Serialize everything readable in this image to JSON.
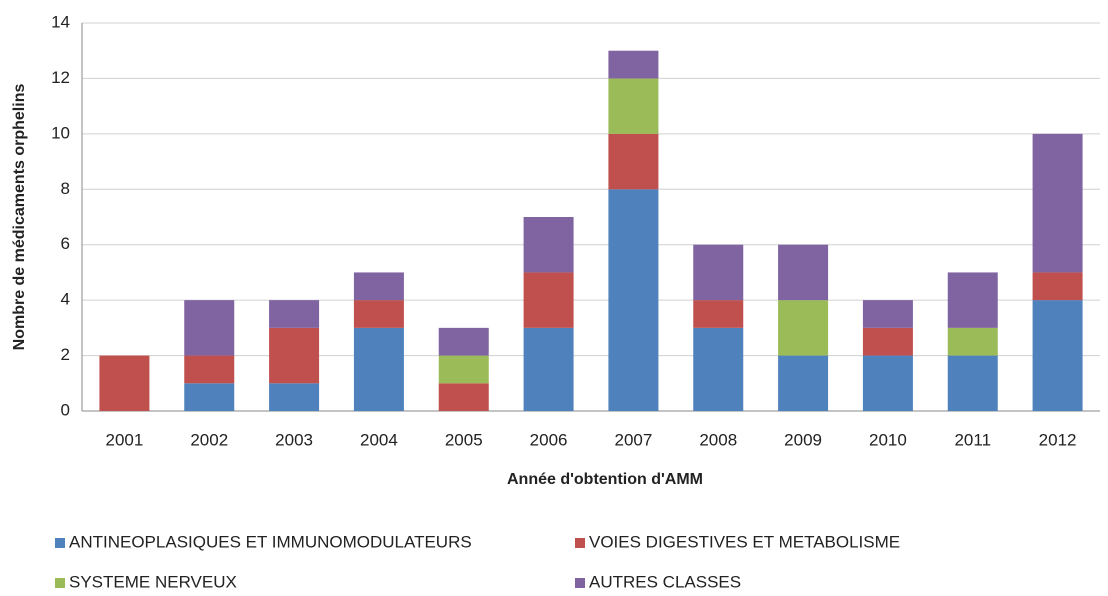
{
  "chart_data": {
    "type": "stacked_bar",
    "x_label": "Année d'obtention d'AMM",
    "y_label": "Nombre de médicaments orphelins",
    "categories": [
      "2001",
      "2002",
      "2003",
      "2004",
      "2005",
      "2006",
      "2007",
      "2008",
      "2009",
      "2010",
      "2011",
      "2012"
    ],
    "series": [
      {
        "name": "ANTINEOPLASIQUES ET IMMUNOMODULATEURS",
        "color": "#4f81bd",
        "values": [
          0,
          1,
          1,
          3,
          0,
          3,
          8,
          3,
          2,
          2,
          2,
          4
        ]
      },
      {
        "name": "VOIES DIGESTIVES ET METABOLISME",
        "color": "#c0504d",
        "values": [
          2,
          1,
          2,
          1,
          1,
          2,
          2,
          1,
          0,
          1,
          0,
          1
        ]
      },
      {
        "name": "SYSTEME NERVEUX",
        "color": "#9bbb59",
        "values": [
          0,
          0,
          0,
          0,
          1,
          0,
          2,
          0,
          2,
          0,
          1,
          0
        ]
      },
      {
        "name": "AUTRES CLASSES",
        "color": "#8064a2",
        "values": [
          0,
          2,
          1,
          1,
          1,
          2,
          1,
          2,
          2,
          1,
          2,
          5
        ]
      }
    ],
    "ylim": [
      0,
      14
    ],
    "yticks": [
      0,
      2,
      4,
      6,
      8,
      10,
      12,
      14
    ],
    "grid": true,
    "legend": "bottom"
  }
}
